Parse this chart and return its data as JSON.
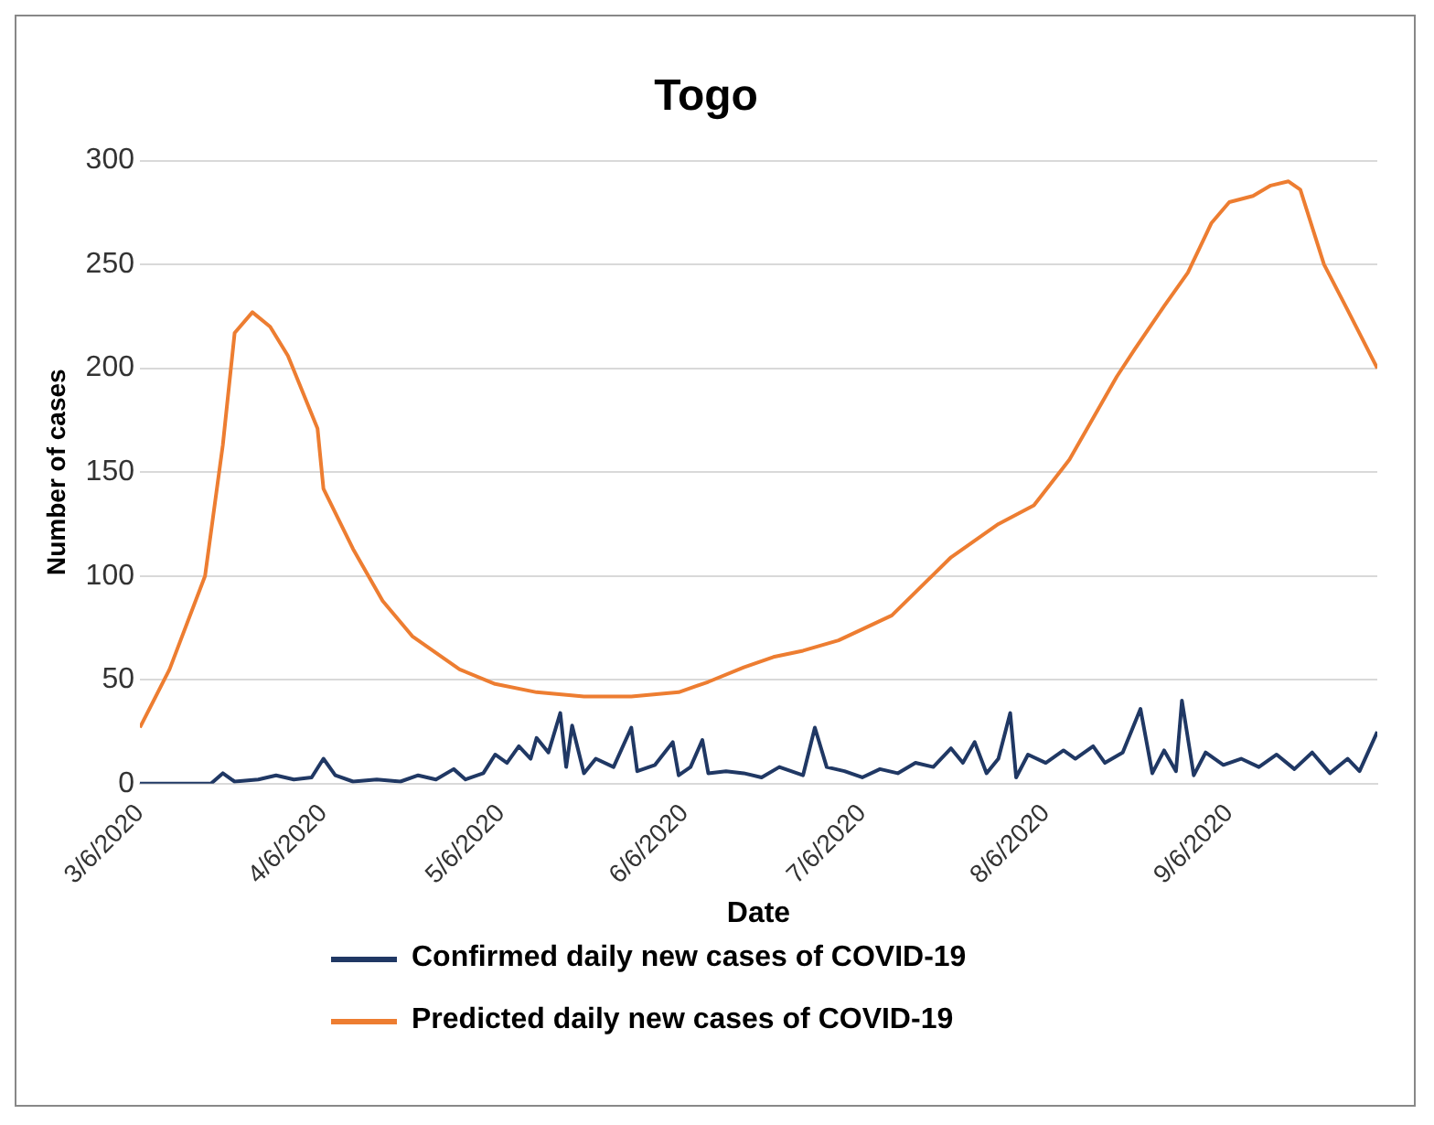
{
  "chart_data": {
    "type": "line",
    "title": "Togo",
    "xlabel": "Date",
    "ylabel": "Number of cases",
    "xlim": [
      "2020-03-06",
      "2020-10-01"
    ],
    "xticks": [
      {
        "value": "2020-03-06",
        "label": "3/6/2020"
      },
      {
        "value": "2020-04-06",
        "label": "4/6/2020"
      },
      {
        "value": "2020-05-06",
        "label": "5/6/2020"
      },
      {
        "value": "2020-06-06",
        "label": "6/6/2020"
      },
      {
        "value": "2020-07-06",
        "label": "7/6/2020"
      },
      {
        "value": "2020-08-06",
        "label": "8/6/2020"
      },
      {
        "value": "2020-09-06",
        "label": "9/6/2020"
      }
    ],
    "ylim": [
      0,
      300
    ],
    "yticks": [
      0,
      50,
      100,
      150,
      200,
      250,
      300
    ],
    "grid": "y",
    "legend": "bottom",
    "marker": "none",
    "line_style": "solid",
    "series": [
      {
        "name": "Confirmed daily new cases of COVID-19",
        "color": "#203864",
        "x": [
          "2020-03-06",
          "2020-03-18",
          "2020-03-20",
          "2020-03-22",
          "2020-03-26",
          "2020-03-29",
          "2020-04-01",
          "2020-04-04",
          "2020-04-06",
          "2020-04-08",
          "2020-04-11",
          "2020-04-15",
          "2020-04-19",
          "2020-04-22",
          "2020-04-25",
          "2020-04-28",
          "2020-04-30",
          "2020-05-03",
          "2020-05-05",
          "2020-05-07",
          "2020-05-09",
          "2020-05-11",
          "2020-05-12",
          "2020-05-14",
          "2020-05-16",
          "2020-05-17",
          "2020-05-18",
          "2020-05-20",
          "2020-05-22",
          "2020-05-25",
          "2020-05-28",
          "2020-05-29",
          "2020-06-01",
          "2020-06-04",
          "2020-06-05",
          "2020-06-07",
          "2020-06-09",
          "2020-06-10",
          "2020-06-13",
          "2020-06-16",
          "2020-06-19",
          "2020-06-22",
          "2020-06-26",
          "2020-06-28",
          "2020-06-30",
          "2020-07-03",
          "2020-07-06",
          "2020-07-09",
          "2020-07-12",
          "2020-07-15",
          "2020-07-18",
          "2020-07-21",
          "2020-07-23",
          "2020-07-25",
          "2020-07-27",
          "2020-07-29",
          "2020-07-31",
          "2020-08-01",
          "2020-08-03",
          "2020-08-06",
          "2020-08-09",
          "2020-08-11",
          "2020-08-14",
          "2020-08-16",
          "2020-08-19",
          "2020-08-22",
          "2020-08-24",
          "2020-08-26",
          "2020-08-28",
          "2020-08-29",
          "2020-08-31",
          "2020-09-02",
          "2020-09-05",
          "2020-09-08",
          "2020-09-11",
          "2020-09-14",
          "2020-09-17",
          "2020-09-20",
          "2020-09-23",
          "2020-09-26",
          "2020-09-28",
          "2020-10-01"
        ],
        "values": [
          0,
          0,
          5,
          1,
          2,
          4,
          2,
          3,
          12,
          4,
          1,
          2,
          1,
          4,
          2,
          7,
          2,
          5,
          14,
          10,
          18,
          12,
          22,
          15,
          34,
          8,
          28,
          5,
          12,
          8,
          27,
          6,
          9,
          20,
          4,
          8,
          21,
          5,
          6,
          5,
          3,
          8,
          4,
          27,
          8,
          6,
          3,
          7,
          5,
          10,
          8,
          17,
          10,
          20,
          5,
          12,
          34,
          3,
          14,
          10,
          16,
          12,
          18,
          10,
          15,
          36,
          5,
          16,
          6,
          40,
          4,
          15,
          9,
          12,
          8,
          14,
          7,
          15,
          5,
          12,
          6,
          25
        ]
      },
      {
        "name": "Predicted daily new cases of COVID-19",
        "color": "#ed7d31",
        "x": [
          "2020-03-06",
          "2020-03-11",
          "2020-03-17",
          "2020-03-20",
          "2020-03-22",
          "2020-03-25",
          "2020-03-28",
          "2020-03-31",
          "2020-04-05",
          "2020-04-06",
          "2020-04-11",
          "2020-04-16",
          "2020-04-21",
          "2020-04-29",
          "2020-05-05",
          "2020-05-12",
          "2020-05-20",
          "2020-05-28",
          "2020-06-05",
          "2020-06-10",
          "2020-06-16",
          "2020-06-21",
          "2020-06-26",
          "2020-07-02",
          "2020-07-11",
          "2020-07-21",
          "2020-07-29",
          "2020-08-04",
          "2020-08-10",
          "2020-08-18",
          "2020-08-21",
          "2020-08-26",
          "2020-08-30",
          "2020-09-03",
          "2020-09-06",
          "2020-09-10",
          "2020-09-13",
          "2020-09-16",
          "2020-09-18",
          "2020-09-22",
          "2020-09-26",
          "2020-10-01"
        ],
        "values": [
          27,
          55,
          100,
          163,
          217,
          227,
          220,
          206,
          171,
          142,
          113,
          88,
          71,
          55,
          48,
          44,
          42,
          42,
          44,
          49,
          56,
          61,
          64,
          69,
          81,
          109,
          125,
          134,
          156,
          196,
          209,
          230,
          246,
          270,
          280,
          283,
          288,
          290,
          286,
          250,
          228,
          200
        ]
      }
    ]
  }
}
